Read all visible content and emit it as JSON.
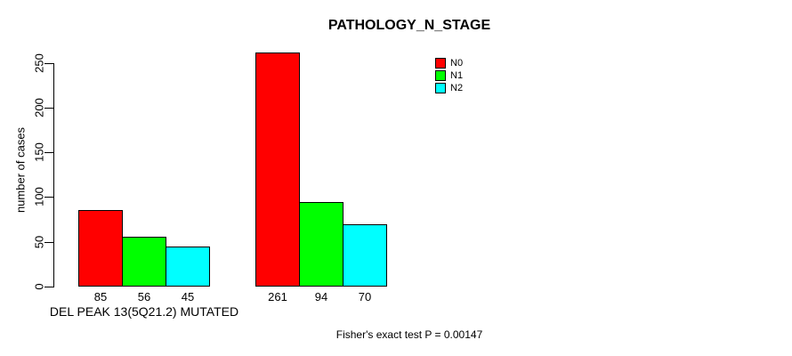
{
  "page": {
    "background": "#ffffff",
    "text_color": "#000000"
  },
  "chart_data": {
    "type": "bar",
    "title": "PATHOLOGY_N_STAGE",
    "xlabel": "",
    "ylabel": "number of cases",
    "categories": [
      "DEL PEAK 13(5Q21.2) MUTATED",
      ""
    ],
    "series": [
      {
        "name": "N0",
        "color": "#ff0000",
        "values": [
          85,
          261
        ]
      },
      {
        "name": "N1",
        "color": "#00ff00",
        "values": [
          56,
          94
        ]
      },
      {
        "name": "N2",
        "color": "#00ffff",
        "values": [
          45,
          70
        ]
      }
    ],
    "yticks": [
      0,
      50,
      100,
      150,
      200,
      250
    ],
    "ylim": [
      0,
      265
    ],
    "grid": false,
    "show_value_labels": true,
    "bar_border_color": "#000000",
    "axis_color": "#000000",
    "legend": {
      "position": "top-right",
      "entries": [
        "N0",
        "N1",
        "N2"
      ]
    },
    "annotation": "Fisher's exact test P = 0.00147"
  }
}
